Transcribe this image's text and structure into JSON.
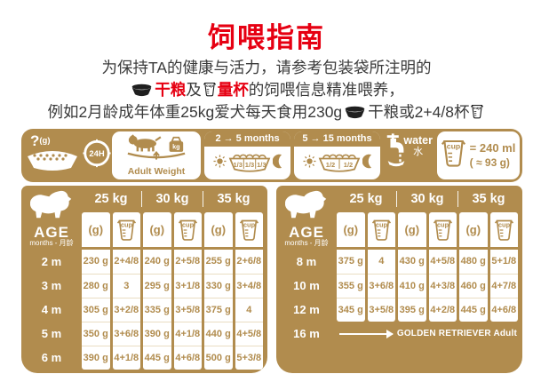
{
  "colors": {
    "accent_gold": "#b18c4e",
    "accent_red": "#e60012",
    "text_dark": "#3a3a3a",
    "separator_light": "#e9ddc2"
  },
  "title": "饲喂指南",
  "intro": {
    "line1": "为保持TA的健康与活力，请参考包装袋所注明的",
    "line2": {
      "dry_food": "干粮",
      "and": "及",
      "cup_word": "量杯",
      "rest": "的饲喂信息精准喂养，"
    },
    "line3": {
      "pre": "例如2月龄成年体重25kg爱犬每天食用230g",
      "mid": "干粮或2+4/8杯"
    }
  },
  "band": {
    "portion": {
      "question": "?",
      "unit": "(g)",
      "clock": "24H"
    },
    "adult_weight": {
      "label": "Adult Weight",
      "weight_unit": "kg"
    },
    "phases": [
      {
        "title": "2 → 5 months",
        "fractions": [
          "1/3",
          "1/3",
          "1/3"
        ]
      },
      {
        "title": "5 → 15 months",
        "fractions": [
          "1/2",
          "1/2"
        ]
      }
    ],
    "water": {
      "en": "water",
      "zh": "水"
    },
    "cup_info": {
      "cup_label": "cup",
      "volume": "= 240 ml",
      "grams": "( ≈ 93 g)"
    }
  },
  "tables": [
    {
      "age_title": "AGE",
      "age_subtitle": "months - 月龄",
      "weights": [
        "25 kg",
        "30 kg",
        "35 kg"
      ],
      "gram_header": "(g)",
      "cup_header": "cup",
      "rows": [
        {
          "age": "2 m",
          "values": [
            "230 g",
            "2+4/8",
            "240 g",
            "2+5/8",
            "255 g",
            "2+6/8"
          ]
        },
        {
          "age": "3 m",
          "values": [
            "280 g",
            "3",
            "295 g",
            "3+1/8",
            "330 g",
            "3+4/8"
          ]
        },
        {
          "age": "4 m",
          "values": [
            "305 g",
            "3+2/8",
            "335 g",
            "3+5/8",
            "375 g",
            "4"
          ]
        },
        {
          "age": "5 m",
          "values": [
            "350 g",
            "3+6/8",
            "390 g",
            "4+1/8",
            "440 g",
            "4+5/8"
          ]
        },
        {
          "age": "6 m",
          "values": [
            "390 g",
            "4+1/8",
            "445 g",
            "4+6/8",
            "500 g",
            "5+3/8"
          ]
        }
      ]
    },
    {
      "age_title": "AGE",
      "age_subtitle": "months - 月龄",
      "weights": [
        "25 kg",
        "30 kg",
        "35 kg"
      ],
      "gram_header": "(g)",
      "cup_header": "cup",
      "rows": [
        {
          "age": "8 m",
          "values": [
            "375 g",
            "4",
            "430 g",
            "4+5/8",
            "480 g",
            "5+1/8"
          ]
        },
        {
          "age": "10 m",
          "values": [
            "355 g",
            "3+6/8",
            "410 g",
            "4+3/8",
            "460 g",
            "4+7/8"
          ]
        },
        {
          "age": "12 m",
          "values": [
            "345 g",
            "3+5/8",
            "395 g",
            "4+2/8",
            "445 g",
            "4+6/8"
          ]
        }
      ],
      "footer": {
        "age": "16 m",
        "label": "GOLDEN RETRIEVER Adult"
      }
    }
  ]
}
